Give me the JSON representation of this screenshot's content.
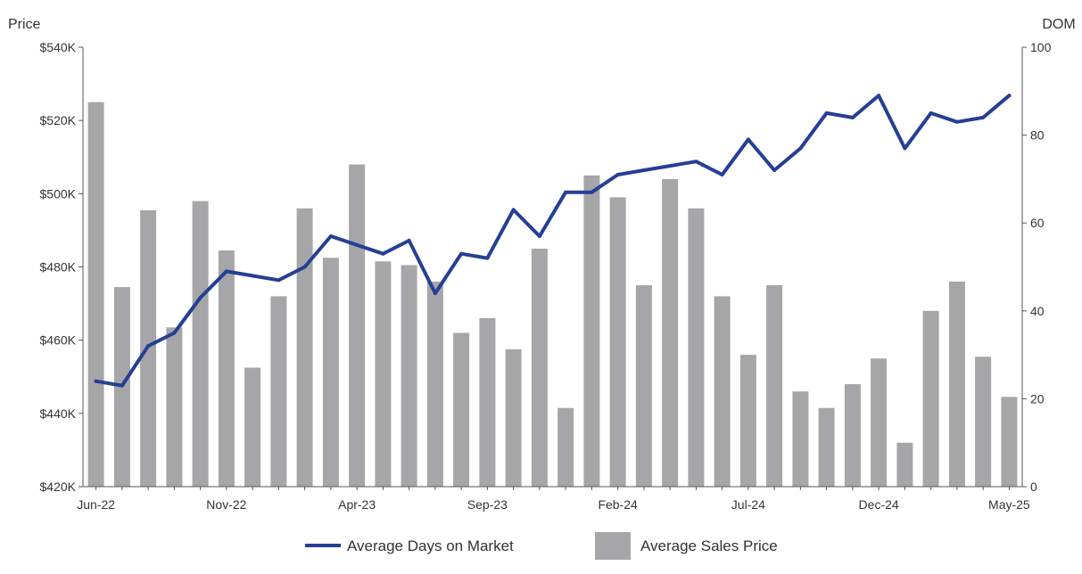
{
  "chart_data": {
    "type": "bar",
    "categories": [
      "Jun-22",
      "Jul-22",
      "Aug-22",
      "Sep-22",
      "Oct-22",
      "Nov-22",
      "Dec-22",
      "Jan-23",
      "Feb-23",
      "Mar-23",
      "Apr-23",
      "May-23",
      "Jun-23",
      "Jul-23",
      "Aug-23",
      "Sep-23",
      "Oct-23",
      "Nov-23",
      "Dec-23",
      "Jan-24",
      "Feb-24",
      "Mar-24",
      "Apr-24",
      "May-24",
      "Jun-24",
      "Jul-24",
      "Aug-24",
      "Sep-24",
      "Oct-24",
      "Nov-24",
      "Dec-24",
      "Jan-25",
      "Feb-25",
      "Mar-25",
      "Apr-25",
      "May-25"
    ],
    "x_tick_labels": [
      "Jun-22",
      "Nov-22",
      "Apr-23",
      "Sep-23",
      "Feb-24",
      "Jul-24",
      "Dec-24",
      "May-25"
    ],
    "x_tick_every": 5,
    "series": [
      {
        "name": "Average Sales Price",
        "type": "bar",
        "axis": "left",
        "color": "#a6a6a8",
        "values": [
          525000,
          474500,
          495500,
          463500,
          498000,
          484500,
          452500,
          472000,
          496000,
          482500,
          508000,
          481500,
          480500,
          476000,
          462000,
          466000,
          457500,
          485000,
          441500,
          505000,
          499000,
          475000,
          504000,
          496000,
          472000,
          456000,
          475000,
          446000,
          441500,
          448000,
          455000,
          432000,
          468000,
          476000,
          455500,
          444500
        ]
      },
      {
        "name": "Average Days on Market",
        "type": "line",
        "axis": "right",
        "color": "#263f94",
        "values": [
          24,
          23,
          32,
          35,
          43,
          49,
          48,
          47,
          50,
          57,
          55,
          53,
          56,
          44,
          53,
          52,
          63,
          57,
          67,
          67,
          71,
          72,
          73,
          74,
          71,
          79,
          72,
          77,
          85,
          84,
          89,
          77,
          85,
          83,
          84,
          89
        ]
      }
    ],
    "y_left": {
      "label": "Price",
      "min": 420000,
      "max": 540000,
      "ticks": [
        420000,
        440000,
        460000,
        480000,
        500000,
        520000,
        540000
      ],
      "tick_labels": [
        "$420K",
        "$440K",
        "$460K",
        "$480K",
        "$500K",
        "$520K",
        "$540K"
      ]
    },
    "y_right": {
      "label": "DOM",
      "min": 0,
      "max": 100,
      "ticks": [
        0,
        20,
        40,
        60,
        80,
        100
      ],
      "tick_labels": [
        "0",
        "20",
        "40",
        "60",
        "80",
        "100"
      ]
    },
    "grid": false,
    "legend": {
      "position": "bottom",
      "items": [
        {
          "label": "Average Days on Market",
          "symbol": "line",
          "color": "#263f94"
        },
        {
          "label": "Average Sales Price",
          "symbol": "box",
          "color": "#a6a6a8"
        }
      ]
    }
  }
}
